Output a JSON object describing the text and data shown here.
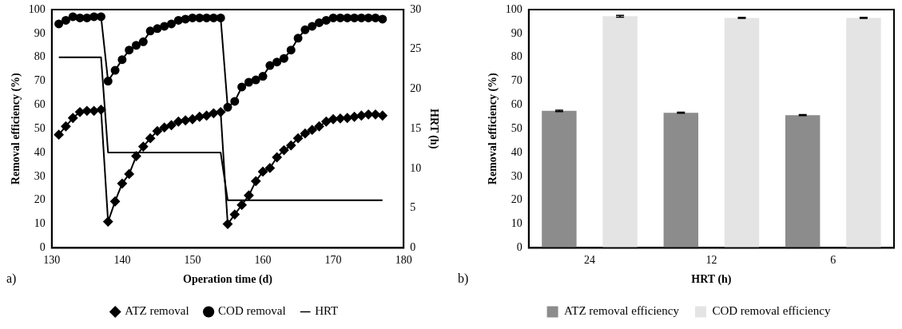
{
  "chart_data": [
    {
      "type": "line",
      "xlabel": "Operation time (d)",
      "ylabel": "Removal efficiency (%)",
      "y2label": "HRT (h)",
      "annotations": [
        "a)"
      ],
      "legend": "bottom",
      "xlim": [
        130,
        180
      ],
      "xticks": [
        130,
        140,
        150,
        160,
        170,
        180
      ],
      "ylim": [
        0,
        100
      ],
      "yticks": [
        0,
        10,
        20,
        30,
        40,
        50,
        60,
        70,
        80,
        90,
        100
      ],
      "y2lim": [
        0,
        30
      ],
      "y2ticks": [
        0,
        5,
        10,
        15,
        20,
        25,
        30
      ],
      "series": [
        {
          "name": "ATZ removal",
          "color": "#000000",
          "marker": "diamond",
          "x": [
            131,
            132,
            133,
            134,
            135,
            136,
            137,
            138,
            139,
            140,
            141,
            142,
            143,
            144,
            145,
            146,
            147,
            148,
            149,
            150,
            151,
            152,
            153,
            154,
            155,
            156,
            157,
            158,
            159,
            160,
            161,
            162,
            163,
            164,
            165,
            166,
            167,
            168,
            169,
            170,
            171,
            172,
            173,
            174,
            175,
            176,
            177
          ],
          "values": [
            47.5,
            51,
            54.5,
            57,
            57.5,
            57.5,
            58,
            11,
            19.5,
            27,
            31,
            38.5,
            42.5,
            46,
            49,
            50.5,
            51.5,
            53,
            53.5,
            54,
            55,
            55.5,
            56.5,
            57,
            10,
            14,
            18,
            22,
            28,
            32,
            33.5,
            38,
            41,
            43,
            46,
            48,
            49.5,
            51,
            53,
            54,
            54.3,
            54.5,
            55,
            55.5,
            56,
            56,
            55.5
          ]
        },
        {
          "name": "COD removal",
          "color": "#000000",
          "marker": "circle",
          "x": [
            131,
            132,
            133,
            134,
            135,
            136,
            137,
            138,
            139,
            140,
            141,
            142,
            143,
            144,
            145,
            146,
            147,
            148,
            149,
            150,
            151,
            152,
            153,
            154,
            155,
            156,
            157,
            158,
            159,
            160,
            161,
            162,
            163,
            164,
            165,
            166,
            167,
            168,
            169,
            170,
            171,
            172,
            173,
            174,
            175,
            176,
            177
          ],
          "values": [
            94,
            95.5,
            97,
            96.5,
            96.5,
            97,
            97,
            70,
            74.5,
            79,
            83,
            85,
            86.5,
            91,
            92,
            93,
            94,
            95.5,
            96,
            96.5,
            96.5,
            96.5,
            96.5,
            96.5,
            59,
            61.5,
            67.5,
            69.5,
            70.5,
            72,
            76.5,
            78,
            79.5,
            83,
            88,
            91.5,
            93,
            94.5,
            95.5,
            96.5,
            96.5,
            96.5,
            96.5,
            96.5,
            96.5,
            96.5,
            96
          ]
        },
        {
          "name": "HRT",
          "color": "#000000",
          "marker": "none",
          "axis": "y2",
          "x": [
            131,
            137,
            138,
            154,
            155,
            177
          ],
          "values": [
            24,
            24,
            12,
            12,
            6,
            6
          ]
        }
      ]
    },
    {
      "type": "bar",
      "xlabel": "HRT (h)",
      "ylabel": "Removal efficiency (%)",
      "annotations": [
        "b)"
      ],
      "legend": "bottom",
      "categories": [
        "24",
        "12",
        "6"
      ],
      "ylim": [
        0,
        100
      ],
      "yticks": [
        0,
        10,
        20,
        30,
        40,
        50,
        60,
        70,
        80,
        90,
        100
      ],
      "series": [
        {
          "name": "ATZ removal efficiency",
          "color": "#8c8c8c",
          "values": [
            57.5,
            56.7,
            55.7
          ],
          "errors": [
            0.3,
            0.2,
            0.2
          ]
        },
        {
          "name": "COD removal efficiency",
          "color": "#e4e4e4",
          "values": [
            97.2,
            96.5,
            96.5
          ],
          "errors": [
            0.4,
            0.2,
            0.2
          ]
        }
      ]
    }
  ]
}
